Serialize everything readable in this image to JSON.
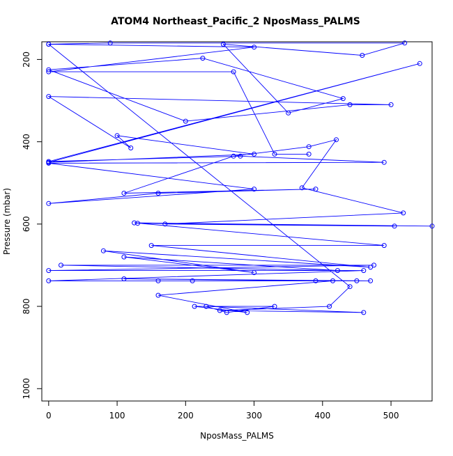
{
  "chart_data": {
    "type": "line",
    "title": "ATOM4 Northeast_Pacific_2 NposMass_PALMS",
    "xlabel": "NposMass_PALMS",
    "ylabel": "Pressure (mbar)",
    "xlim": [
      -10,
      560
    ],
    "ylim": [
      1030,
      157
    ],
    "y_reversed": true,
    "x_ticks": [
      0,
      100,
      200,
      300,
      400,
      500
    ],
    "y_ticks": [
      200,
      400,
      600,
      800,
      1000
    ],
    "grid": false,
    "legend": "none",
    "color": "#0000ff",
    "marker": "open-circle",
    "series": [
      {
        "points": [
          [
            0,
            163
          ],
          [
            90,
            160
          ],
          [
            520,
            160
          ],
          [
            458,
            190
          ],
          [
            255,
            163
          ],
          [
            350,
            330
          ],
          [
            430,
            295
          ],
          [
            225,
            197
          ],
          [
            0,
            225
          ],
          [
            200,
            350
          ],
          [
            440,
            310
          ],
          [
            500,
            310
          ],
          [
            0,
            290
          ],
          [
            120,
            415
          ],
          [
            100,
            385
          ],
          [
            300,
            430
          ],
          [
            0,
            450
          ],
          [
            542,
            210
          ],
          [
            0,
            448
          ],
          [
            280,
            435
          ],
          [
            490,
            450
          ],
          [
            0,
            452
          ],
          [
            300,
            515
          ],
          [
            0,
            550
          ],
          [
            160,
            525
          ],
          [
            390,
            515
          ],
          [
            110,
            525
          ],
          [
            270,
            435
          ],
          [
            380,
            412
          ],
          [
            420,
            395
          ],
          [
            370,
            512
          ],
          [
            518,
            573
          ],
          [
            170,
            600
          ],
          [
            505,
            605
          ],
          [
            130,
            598
          ],
          [
            560,
            605
          ],
          [
            125,
            597
          ],
          [
            490,
            652
          ],
          [
            150,
            652
          ],
          [
            470,
            705
          ],
          [
            80,
            665
          ],
          [
            300,
            718
          ],
          [
            110,
            680
          ],
          [
            422,
            713
          ],
          [
            18,
            700
          ],
          [
            475,
            700
          ],
          [
            0,
            713
          ],
          [
            460,
            713
          ],
          [
            0,
            738
          ],
          [
            470,
            738
          ],
          [
            110,
            733
          ],
          [
            390,
            738
          ],
          [
            160,
            738
          ],
          [
            450,
            738
          ],
          [
            210,
            738
          ],
          [
            415,
            738
          ],
          [
            160,
            773
          ],
          [
            290,
            815
          ],
          [
            213,
            800
          ],
          [
            330,
            800
          ],
          [
            260,
            815
          ],
          [
            230,
            800
          ],
          [
            460,
            815
          ],
          [
            250,
            810
          ],
          [
            410,
            800
          ],
          [
            440,
            752
          ],
          [
            0,
            163
          ],
          [
            300,
            170
          ],
          [
            0,
            230
          ],
          [
            270,
            230
          ],
          [
            330,
            430
          ],
          [
            380,
            430
          ]
        ]
      }
    ]
  }
}
